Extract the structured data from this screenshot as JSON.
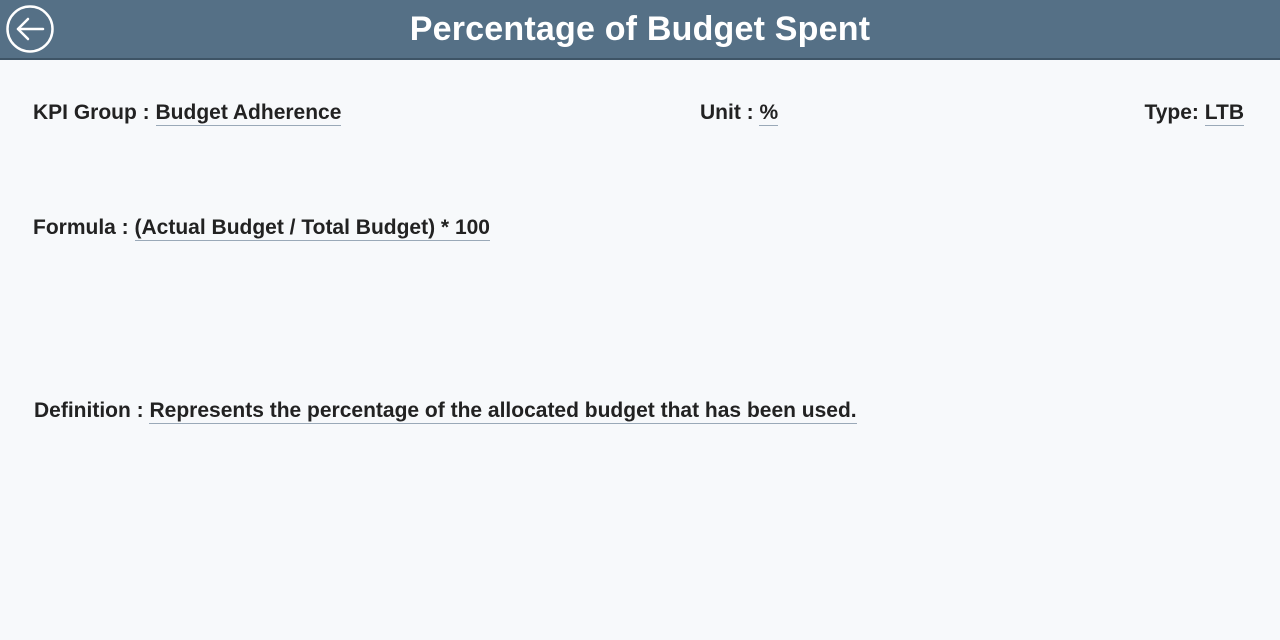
{
  "header": {
    "title": "Percentage of Budget Spent",
    "back_icon": "arrow-left-circle-icon",
    "background_color": "#557086"
  },
  "fields": {
    "kpi_group": {
      "label": "KPI Group : ",
      "value": "Budget Adherence"
    },
    "unit": {
      "label": "Unit : ",
      "value": "%"
    },
    "type": {
      "label": "Type: ",
      "value": "LTB"
    },
    "formula": {
      "label": "Formula : ",
      "value": "(Actual Budget / Total Budget) * 100"
    },
    "definition": {
      "label": "Definition : ",
      "value": "Represents the percentage of the allocated budget that has been used."
    }
  }
}
